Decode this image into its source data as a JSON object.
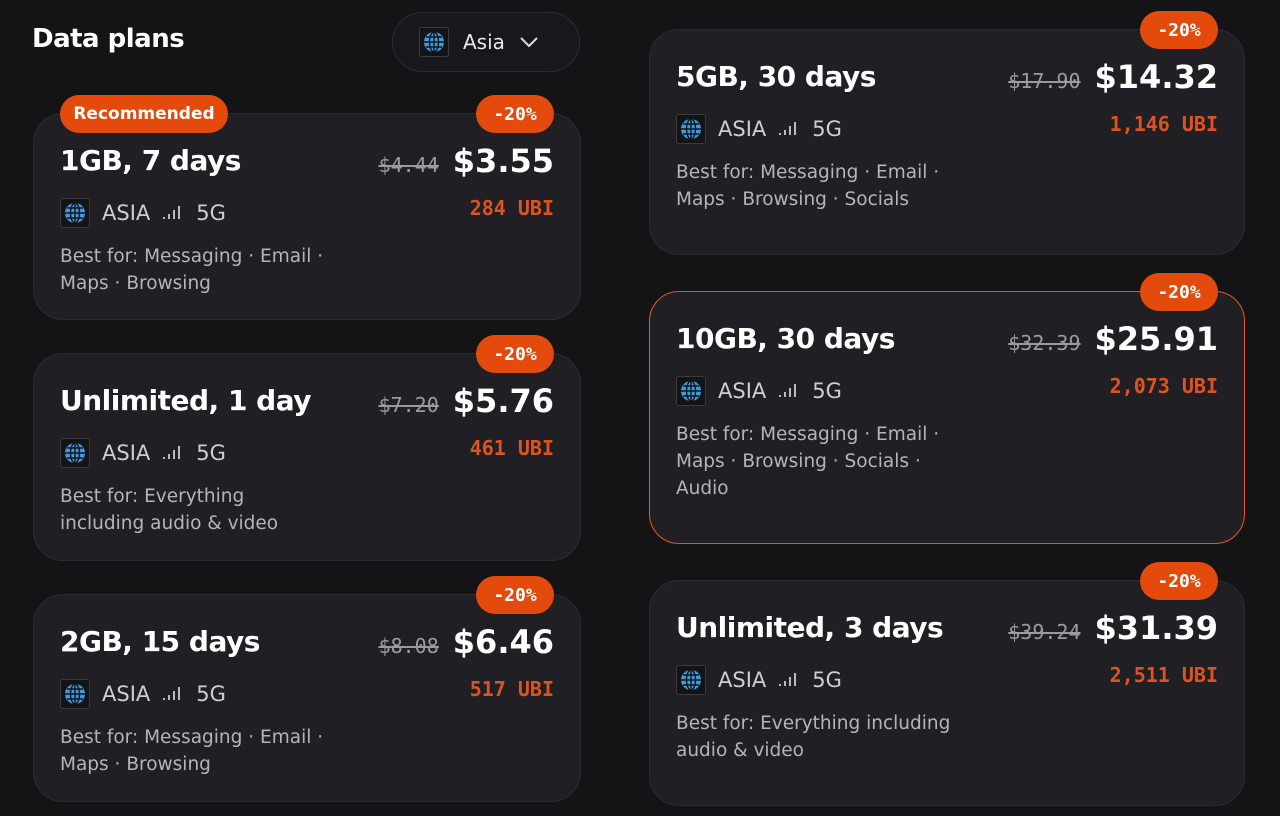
{
  "header": {
    "title": "Data plans",
    "region_select": {
      "value": "Asia",
      "icon": "globe-icon"
    }
  },
  "colors": {
    "accent": "#e34a0c",
    "ubi": "#e0521f",
    "background": "#141417",
    "card": "#202024"
  },
  "plans": [
    {
      "name": "1GB, 7 days",
      "badge": "Recommended",
      "discount": "-20%",
      "old_price": "$4.44",
      "price": "$3.55",
      "ubi": "284 UBI",
      "region": "ASIA",
      "network": "5G",
      "best_for": "Best for: Messaging · Email · Maps · Browsing"
    },
    {
      "name": "Unlimited, 1 day",
      "discount": "-20%",
      "old_price": "$7.20",
      "price": "$5.76",
      "ubi": "461 UBI",
      "region": "ASIA",
      "network": "5G",
      "best_for": "Best for: Everything including audio & video"
    },
    {
      "name": "2GB, 15 days",
      "discount": "-20%",
      "old_price": "$8.08",
      "price": "$6.46",
      "ubi": "517 UBI",
      "region": "ASIA",
      "network": "5G",
      "best_for": "Best for: Messaging · Email · Maps · Browsing"
    },
    {
      "name": "5GB, 30 days",
      "discount": "-20%",
      "old_price": "$17.90",
      "price": "$14.32",
      "ubi": "1,146 UBI",
      "region": "ASIA",
      "network": "5G",
      "best_for": "Best for: Messaging · Email · Maps · Browsing · Socials"
    },
    {
      "name": "10GB, 30 days",
      "discount": "-20%",
      "old_price": "$32.39",
      "price": "$25.91",
      "ubi": "2,073 UBI",
      "region": "ASIA",
      "network": "5G",
      "best_for": "Best for: Messaging · Email · Maps · Browsing · Socials · Audio",
      "selected": true
    },
    {
      "name": "Unlimited, 3 days",
      "discount": "-20%",
      "old_price": "$39.24",
      "price": "$31.39",
      "ubi": "2,511 UBI",
      "region": "ASIA",
      "network": "5G",
      "best_for": "Best for: Everything including audio & video"
    }
  ]
}
